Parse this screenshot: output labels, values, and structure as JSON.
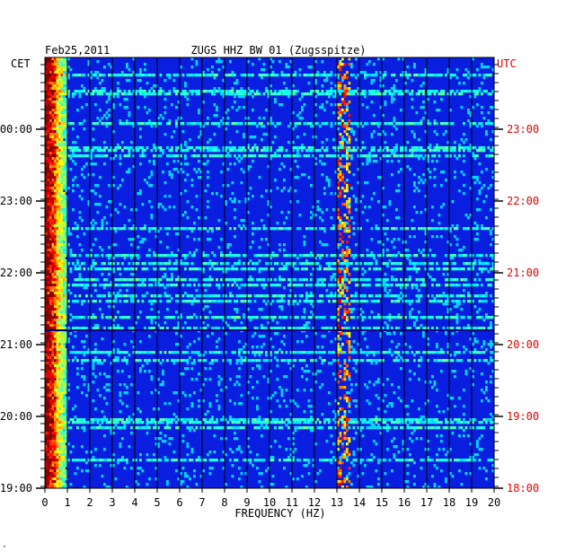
{
  "chart_data": {
    "type": "heatmap",
    "date": "Feb25,2011",
    "title": "ZUGS HHZ BW 01 (Zugsspitze)",
    "left_timezone": "CET",
    "right_timezone": "UTC",
    "xlabel": "FREQUENCY (HZ)",
    "xlim": [
      0,
      20
    ],
    "x_ticks": [
      "0",
      "1",
      "2",
      "3",
      "4",
      "5",
      "6",
      "7",
      "8",
      "9",
      "10",
      "11",
      "12",
      "13",
      "14",
      "15",
      "16",
      "17",
      "18",
      "19",
      "20"
    ],
    "left_ticks": [
      "00:00",
      "23:00",
      "22:00",
      "21:00",
      "20:00",
      "19:00"
    ],
    "right_ticks": [
      "23:00",
      "22:00",
      "21:00",
      "20:00",
      "19:00",
      "18:00"
    ],
    "colors": {
      "background": "#0a1ee0",
      "left_label": "#000000",
      "right_label": "#e00000",
      "grid": "#000000"
    },
    "features": [
      {
        "desc": "strong low-frequency band",
        "freq_range": [
          0,
          1
        ]
      },
      {
        "desc": "signal near 13.3 Hz",
        "freq": 13.3
      }
    ]
  },
  "footer": {
    "mark": "·"
  }
}
